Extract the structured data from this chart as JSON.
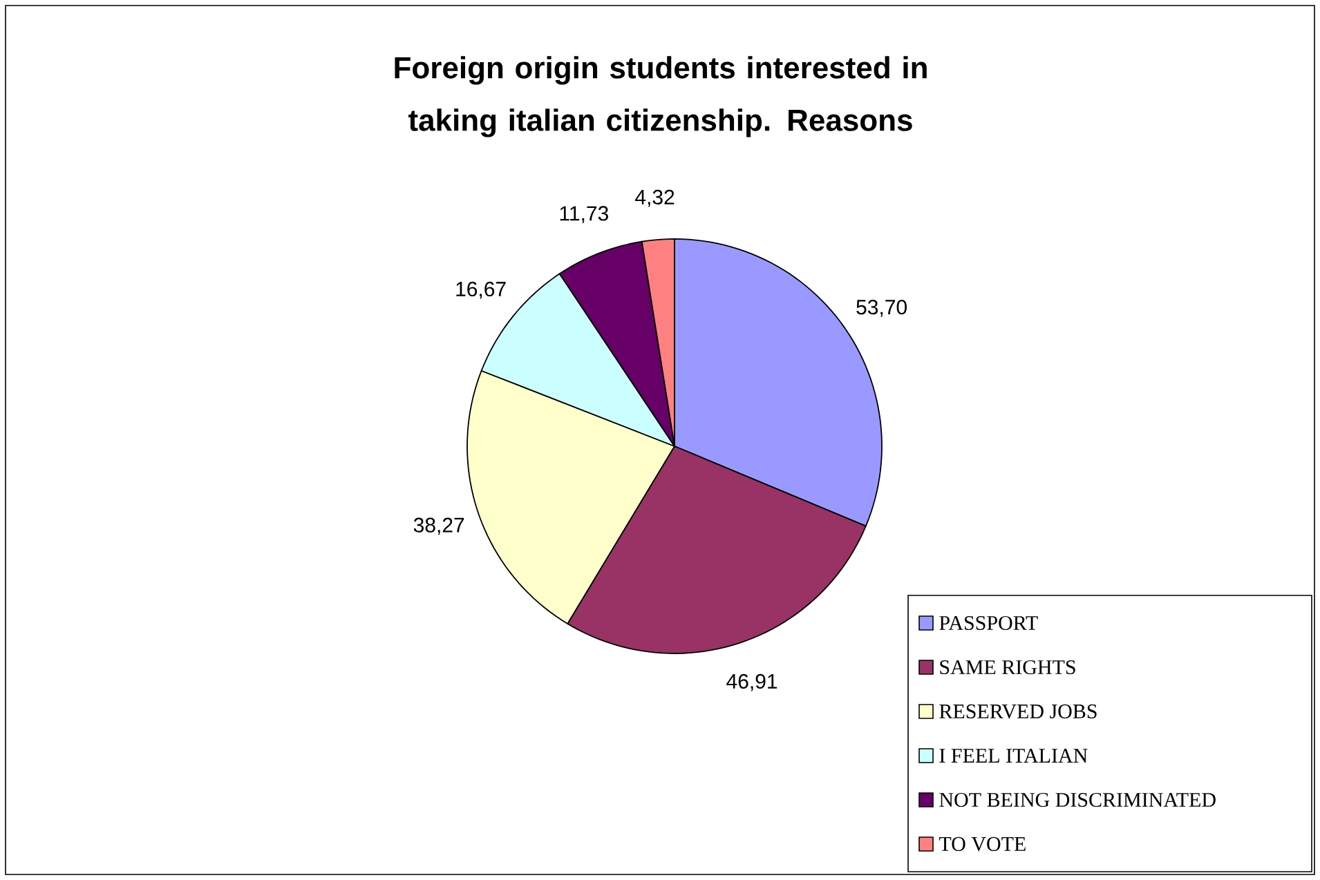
{
  "chart_data": {
    "type": "pie",
    "title": "Foreign origin students interested in taking italian citizenship. Reasons",
    "categories": [
      "PASSPORT",
      "SAME RIGHTS",
      "RESERVED JOBS",
      "I FEEL ITALIAN",
      "NOT BEING DISCRIMINATED",
      "TO VOTE"
    ],
    "values": [
      53.7,
      46.91,
      38.27,
      16.67,
      11.73,
      4.32
    ],
    "value_labels": [
      "53,70",
      "46,91",
      "38,27",
      "16,67",
      "11,73",
      "4,32"
    ],
    "colors": [
      "#9999ff",
      "#993366",
      "#ffffcc",
      "#ccffff",
      "#660066",
      "#ff8080"
    ],
    "legend": "bottom right"
  }
}
